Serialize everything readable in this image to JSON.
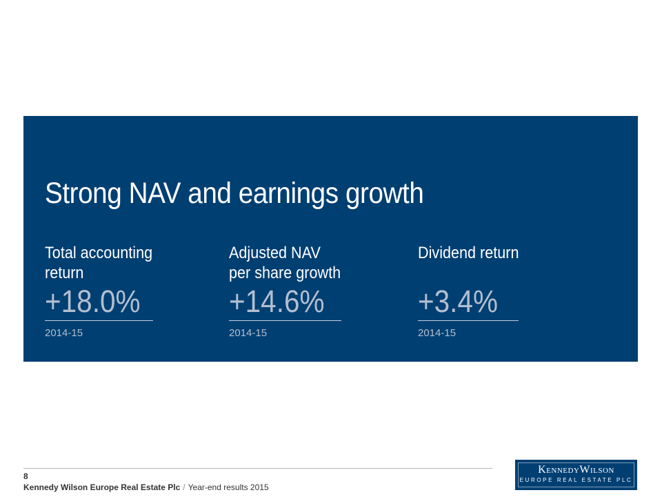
{
  "slide": {
    "title": "Strong NAV and earnings growth",
    "metrics": [
      {
        "label_line1": "Total accounting",
        "label_line2": "return",
        "value": "+18.0%",
        "period": "2014-15"
      },
      {
        "label_line1": "Adjusted NAV",
        "label_line2": "per share growth",
        "value": "+14.6%",
        "period": "2014-15"
      },
      {
        "label_line1": "Dividend return",
        "label_line2": "",
        "value": "+3.4%",
        "period": "2014-15"
      }
    ]
  },
  "footer": {
    "page_number": "8",
    "company": "Kennedy Wilson Europe Real Estate Plc",
    "separator": "/",
    "document": "Year-end results 2015"
  },
  "logo": {
    "name": "KennedyWilson",
    "subtitle": "EUROPE REAL ESTATE PLC"
  },
  "colors": {
    "panel": "#003f72",
    "value_text": "#b2bfd0"
  }
}
